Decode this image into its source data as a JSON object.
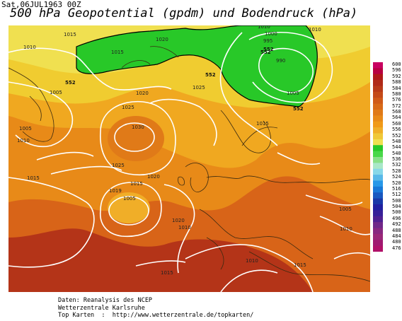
{
  "header": {
    "date_label": "Sat,06JUL1963 00Z",
    "title": "500 hPa Geopotential (gpdm) und Bodendruck (hPa)"
  },
  "legend": {
    "levels": [
      "600",
      "596",
      "592",
      "588",
      "584",
      "580",
      "576",
      "572",
      "568",
      "564",
      "560",
      "556",
      "552",
      "548",
      "544",
      "540",
      "536",
      "532",
      "528",
      "524",
      "520",
      "516",
      "512",
      "508",
      "504",
      "500",
      "496",
      "492",
      "488",
      "484",
      "480",
      "476"
    ],
    "colors": [
      "#c80060",
      "#b80040",
      "#b01818",
      "#b02a18",
      "#b83a18",
      "#c44a18",
      "#d05a18",
      "#d86a18",
      "#e07a18",
      "#e88a18",
      "#f09a18",
      "#f0ae28",
      "#f0c838",
      "#f0e050",
      "#28c828",
      "#48d848",
      "#88e088",
      "#a8e8c8",
      "#88d8e8",
      "#58b8e8",
      "#2898e8",
      "#1878d8",
      "#1858c0",
      "#1838a8",
      "#2020a0",
      "#382098",
      "#502090",
      "#702888",
      "#882880",
      "#9a2878",
      "#a01870",
      "#b01068"
    ]
  },
  "map": {
    "isobar_labels": [
      "1015",
      "1010",
      "1010",
      "1015",
      "1020",
      "1000",
      "1010",
      "995",
      "990",
      "1005",
      "1005",
      "1005",
      "1020",
      "1025",
      "1025",
      "1030",
      "1010",
      "1025",
      "1020",
      "1015",
      "1015",
      "1019",
      "1005",
      "1020",
      "1010",
      "1005",
      "1010",
      "1010",
      "1015",
      "1015",
      "1015"
    ],
    "geo_labels": [
      "552",
      "552",
      "552",
      "552",
      "552"
    ]
  },
  "footer": {
    "line1": "Daten: Reanalysis des NCEP",
    "line2": "Wetterzentrale Karlsruhe",
    "line3": "Top Karten  :  http://www.wetterzentrale.de/topkarten/"
  }
}
